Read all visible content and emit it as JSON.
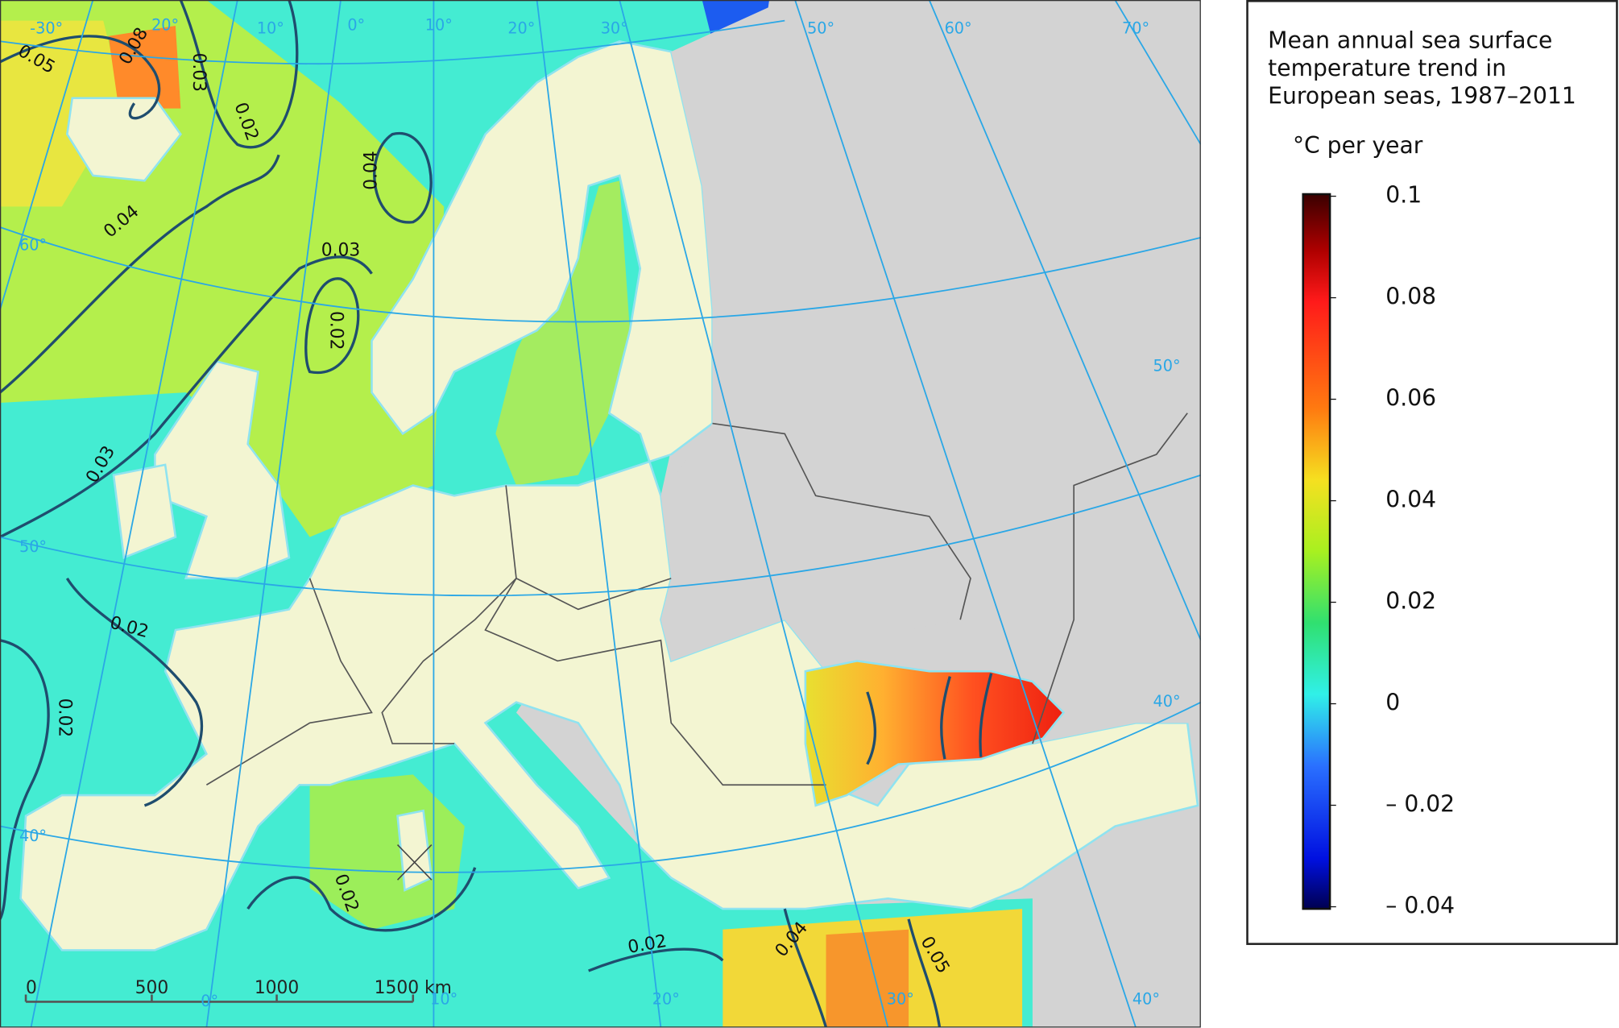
{
  "legend": {
    "title": [
      "Mean annual sea surface",
      "temperature trend in",
      "European seas, 1987–2011"
    ],
    "unit": "°C per year",
    "range": [
      -0.04,
      0.1
    ],
    "ticks": [
      0.1,
      0.08,
      0.06,
      0.04,
      0.02,
      0,
      {
        "value": -0.02,
        "label": "– 0.02"
      },
      {
        "value": -0.04,
        "label": "– 0.04"
      }
    ]
  },
  "map": {
    "contour_labels": [
      "0.05",
      "0.08",
      "0.03",
      "0.02",
      "0.04",
      "0.04",
      "0.03",
      "0.02",
      "0.03",
      "0.02",
      "0.02",
      "0.02",
      "0.02",
      "0.04",
      "0.05"
    ],
    "graticule_labels": [
      "-30°",
      "20°",
      "10°",
      "0°",
      "10°",
      "20°",
      "30°",
      "50°",
      "60°",
      "70°",
      "60°",
      "50°",
      "40°",
      "0°",
      "10°",
      "20°",
      "30°",
      "40°",
      "50°",
      "40°"
    ],
    "scale_bar": [
      "0",
      "500",
      "1000",
      "1500 km"
    ]
  }
}
